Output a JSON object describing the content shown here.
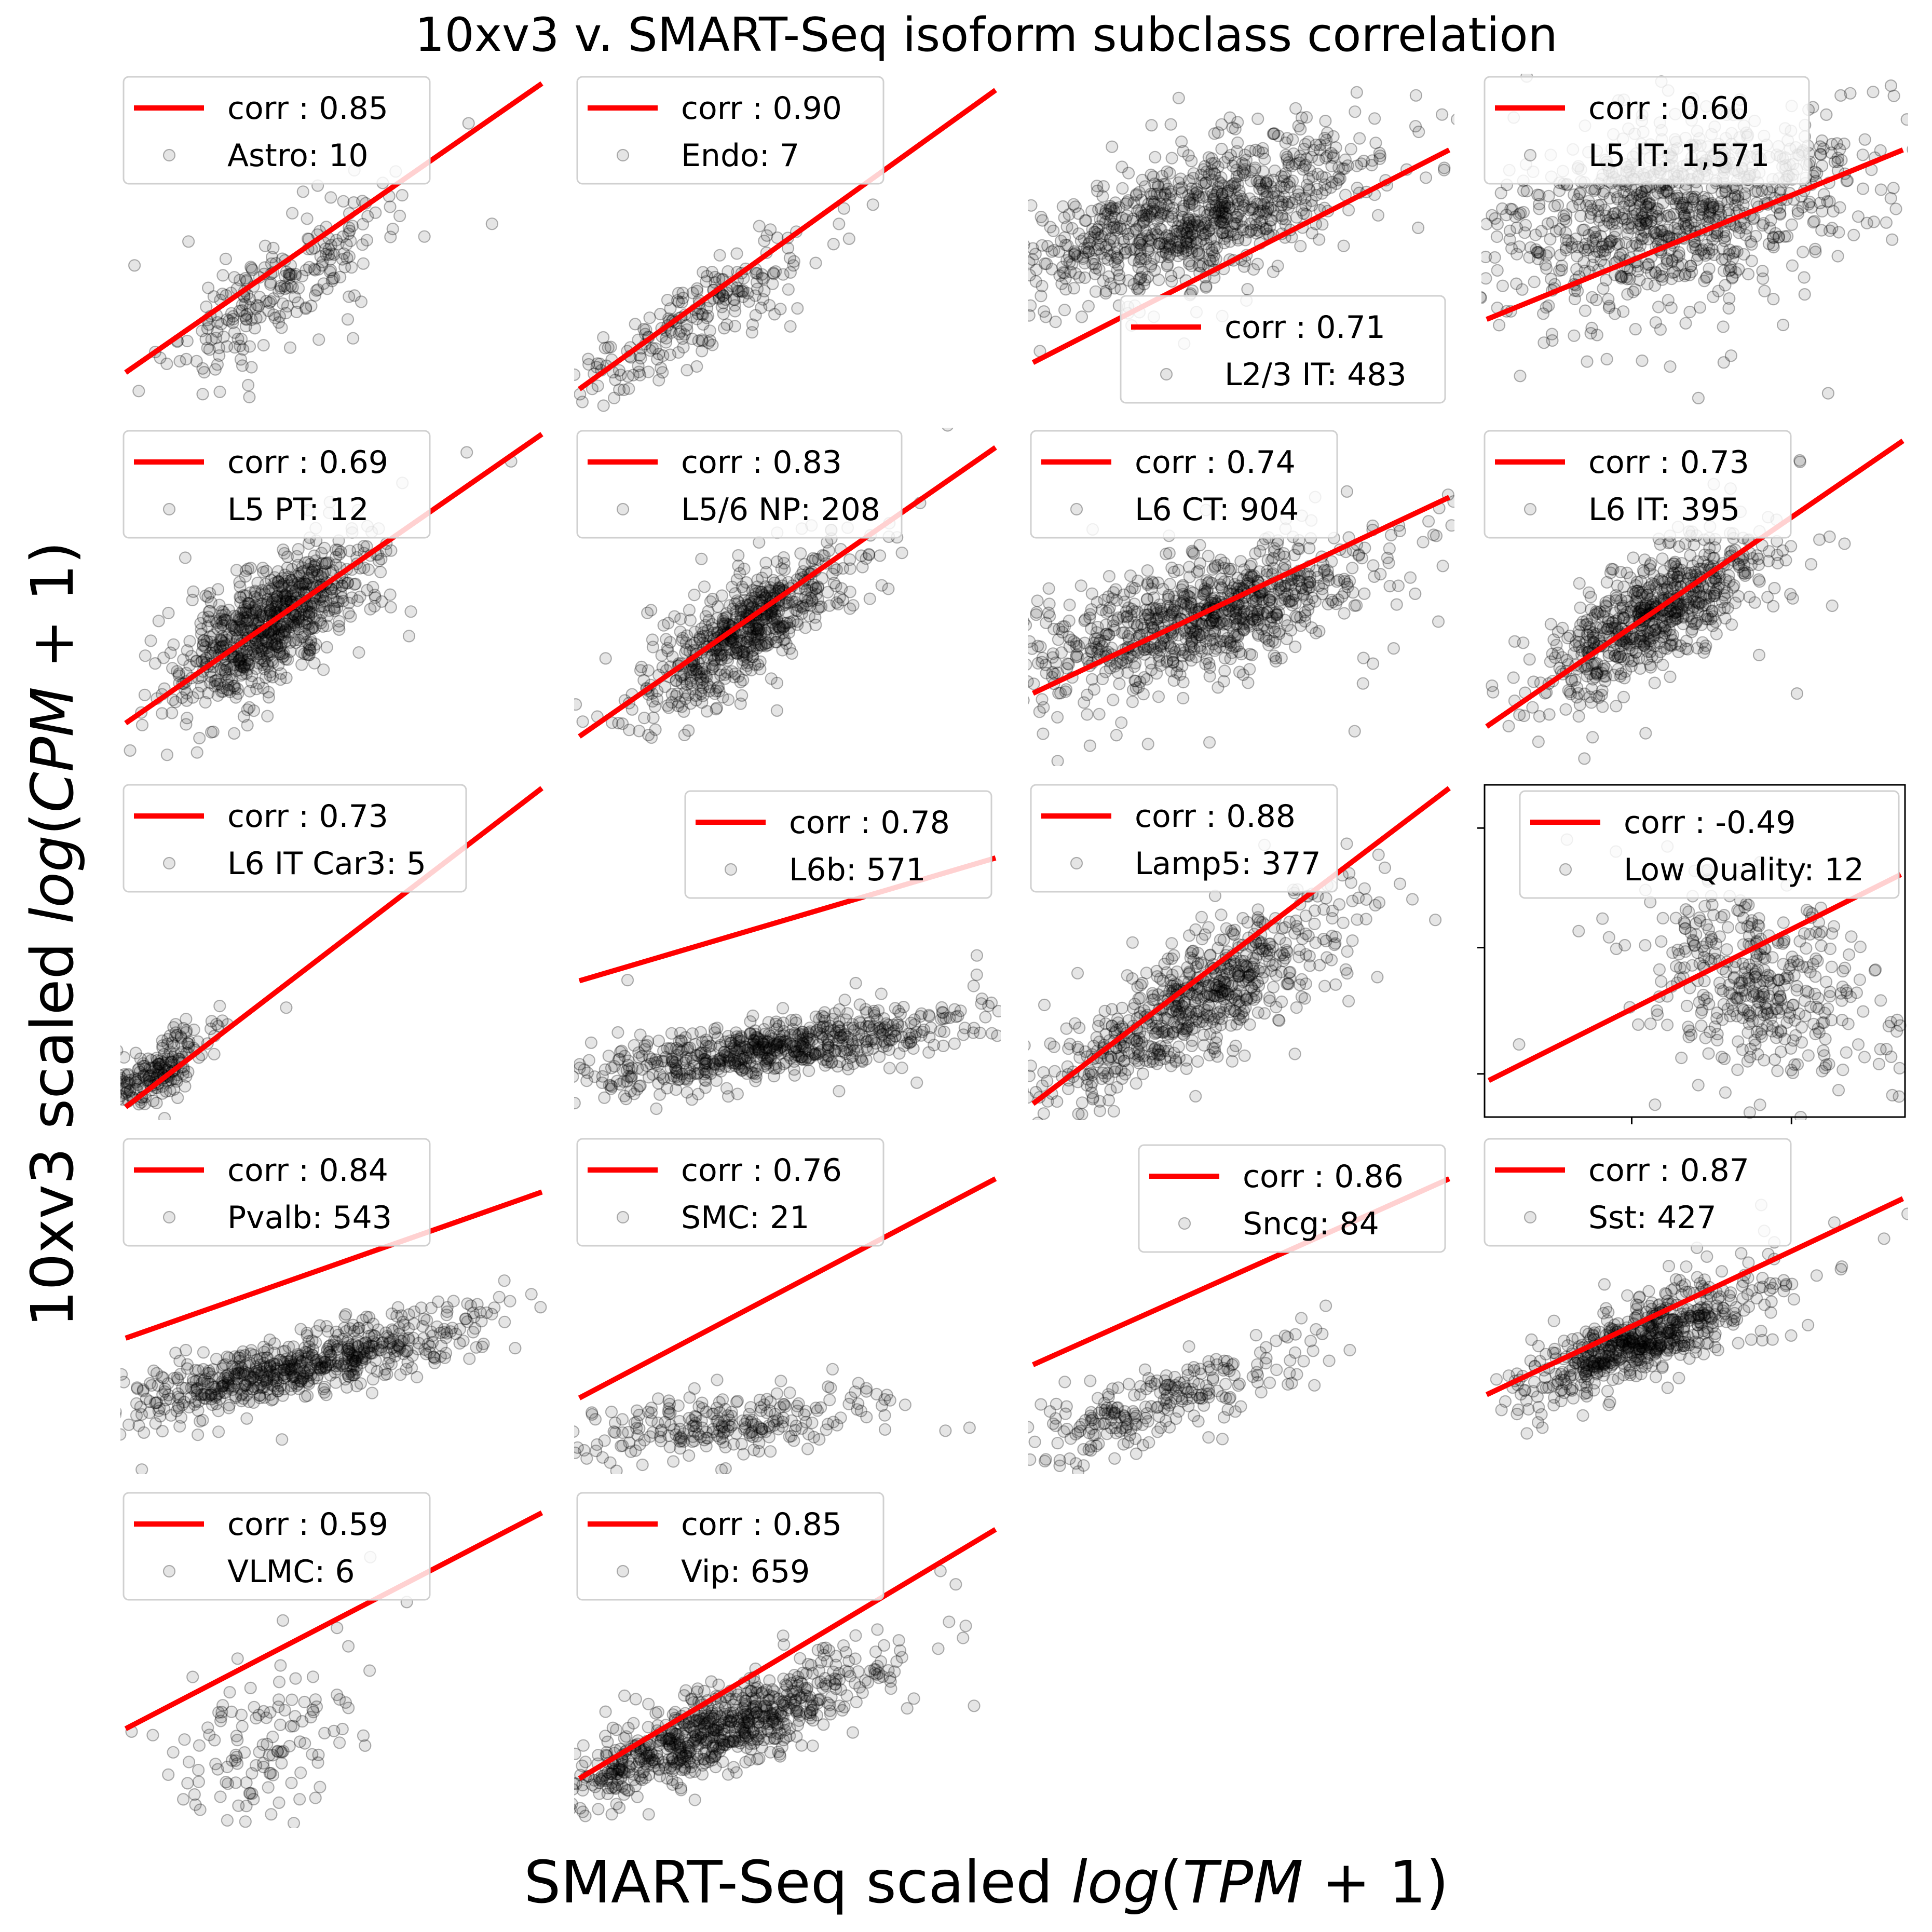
{
  "figure": {
    "title": "10xv3 v. SMART-Seq isoform subclass correlation",
    "xlabel": "SMART-Seq scaled log(TPM + 1)",
    "xlabel_plain": "SMART-Seq scaled ",
    "xlabel_math_open": "log",
    "xlabel_math_paren": "(",
    "xlabel_math_var": "TPM",
    "xlabel_math_rest": " + 1)",
    "ylabel": "10xv3 scaled log(CPM + 1)",
    "ylabel_plain": "10xv3 scaled ",
    "ylabel_math_open": "log",
    "ylabel_math_paren": "(",
    "ylabel_math_var": "CPM",
    "ylabel_math_rest": " + 1)",
    "colors": {
      "fit_line": "#ff0000",
      "points": "#000000",
      "point_alpha": "0.1"
    }
  },
  "chart_data": [
    {
      "type": "scatter",
      "subclass": "Astro",
      "corr_label": "corr : 0.85",
      "count_label": "Astro: 10",
      "corr": 0.85,
      "n": "10",
      "legend": "upper-left"
    },
    {
      "type": "scatter",
      "subclass": "Endo",
      "corr_label": "corr : 0.90",
      "count_label": "Endo: 7",
      "corr": 0.9,
      "n": "7",
      "legend": "upper-left"
    },
    {
      "type": "scatter",
      "subclass": "L2/3 IT",
      "corr_label": "corr : 0.71",
      "count_label": "L2/3 IT: 483",
      "corr": 0.71,
      "n": "483",
      "legend": "lower-right"
    },
    {
      "type": "scatter",
      "subclass": "L5 IT",
      "corr_label": "corr : 0.60",
      "count_label": "L5 IT: 1,571",
      "corr": 0.6,
      "n": "1,571",
      "legend": "upper-left"
    },
    {
      "type": "scatter",
      "subclass": "L5 PT",
      "corr_label": "corr : 0.69",
      "count_label": "L5 PT: 12",
      "corr": 0.69,
      "n": "12",
      "legend": "upper-left"
    },
    {
      "type": "scatter",
      "subclass": "L5/6 NP",
      "corr_label": "corr : 0.83",
      "count_label": "L5/6 NP: 208",
      "corr": 0.83,
      "n": "208",
      "legend": "upper-left"
    },
    {
      "type": "scatter",
      "subclass": "L6 CT",
      "corr_label": "corr : 0.74",
      "count_label": "L6 CT: 904",
      "corr": 0.74,
      "n": "904",
      "legend": "upper-left"
    },
    {
      "type": "scatter",
      "subclass": "L6 IT",
      "corr_label": "corr : 0.73",
      "count_label": "L6 IT: 395",
      "corr": 0.73,
      "n": "395",
      "legend": "upper-left"
    },
    {
      "type": "scatter",
      "subclass": "L6 IT Car3",
      "corr_label": "corr : 0.73",
      "count_label": "L6 IT Car3: 5",
      "corr": 0.73,
      "n": "5",
      "legend": "upper-left"
    },
    {
      "type": "scatter",
      "subclass": "L6b",
      "corr_label": "corr : 0.78",
      "count_label": "L6b: 571",
      "corr": 0.78,
      "n": "571",
      "legend": "upper-right"
    },
    {
      "type": "scatter",
      "subclass": "Lamp5",
      "corr_label": "corr : 0.88",
      "count_label": "Lamp5: 377",
      "corr": 0.88,
      "n": "377",
      "legend": "upper-left"
    },
    {
      "type": "scatter",
      "subclass": "Low Quality",
      "corr_label": "corr : -0.49",
      "count_label": "Low Quality: 12",
      "corr": -0.49,
      "n": "12",
      "legend": "upper-right"
    },
    {
      "type": "scatter",
      "subclass": "Pvalb",
      "corr_label": "corr : 0.84",
      "count_label": "Pvalb: 543",
      "corr": 0.84,
      "n": "543",
      "legend": "upper-left"
    },
    {
      "type": "scatter",
      "subclass": "SMC",
      "corr_label": "corr : 0.76",
      "count_label": "SMC: 21",
      "corr": 0.76,
      "n": "21",
      "legend": "upper-left"
    },
    {
      "type": "scatter",
      "subclass": "Sncg",
      "corr_label": "corr : 0.86",
      "count_label": "Sncg: 84",
      "corr": 0.86,
      "n": "84",
      "legend": "upper-right"
    },
    {
      "type": "scatter",
      "subclass": "Sst",
      "corr_label": "corr : 0.87",
      "count_label": "Sst: 427",
      "corr": 0.87,
      "n": "427",
      "legend": "upper-left"
    },
    {
      "type": "scatter",
      "subclass": "VLMC",
      "corr_label": "corr : 0.59",
      "count_label": "VLMC: 6",
      "corr": 0.59,
      "n": "6",
      "legend": "upper-left"
    },
    {
      "type": "scatter",
      "subclass": "Vip",
      "corr_label": "corr : 0.85",
      "count_label": "Vip: 659",
      "corr": 0.85,
      "n": "659",
      "legend": "upper-left"
    }
  ]
}
